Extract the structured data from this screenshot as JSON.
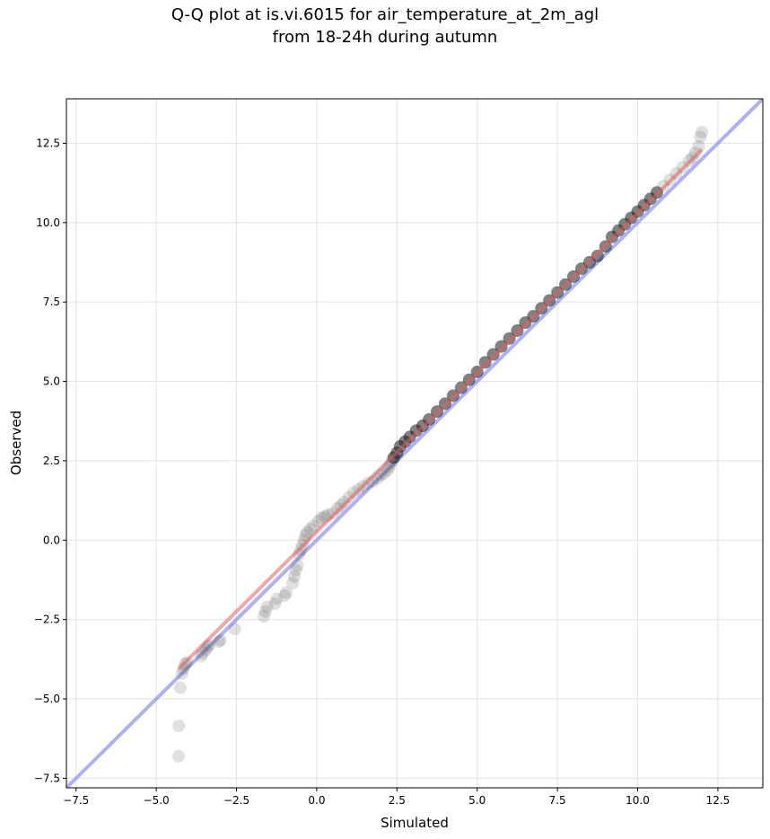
{
  "chart_data": {
    "type": "scatter",
    "title": "Q-Q plot at is.vi.6015 for air_temperature_at_2m_agl",
    "subtitle": "from 18-24h during autumn",
    "xlabel": "Simulated",
    "ylabel": "Observed",
    "xlim": [
      -7.8,
      13.9
    ],
    "ylim": [
      -7.8,
      13.9
    ],
    "xticks": [
      -7.5,
      -5.0,
      -2.5,
      0.0,
      2.5,
      5.0,
      7.5,
      10.0,
      12.5
    ],
    "yticks": [
      -7.5,
      -5.0,
      -2.5,
      0.0,
      2.5,
      5.0,
      7.5,
      10.0,
      12.5
    ],
    "xtick_labels": [
      "−7.5",
      "−5.0",
      "−2.5",
      "0.0",
      "2.5",
      "5.0",
      "7.5",
      "10.0",
      "12.5"
    ],
    "ytick_labels": [
      "−7.5",
      "−5.0",
      "−2.5",
      "0.0",
      "2.5",
      "5.0",
      "7.5",
      "10.0",
      "12.5"
    ],
    "grid": true,
    "colors": {
      "points": "#555555",
      "fit_line": "#e06060",
      "identity_line": "#7b7bef",
      "core_band": "#1a1a1a"
    },
    "fit_line": {
      "x": [
        -4.3,
        12.0
      ],
      "y": [
        -4.05,
        12.3
      ]
    },
    "identity_line": {
      "x": [
        -7.8,
        13.9
      ],
      "y": [
        -7.8,
        13.9
      ]
    },
    "points": {
      "x": [
        -4.3,
        -4.3,
        -4.25,
        -4.2,
        -4.15,
        -4.1,
        -4.05,
        -3.6,
        -3.55,
        -3.45,
        -3.4,
        -3.35,
        -3.05,
        -3.0,
        -2.55,
        -1.65,
        -1.6,
        -1.55,
        -1.3,
        -1.25,
        -1.0,
        -0.95,
        -0.75,
        -0.7,
        -0.65,
        -0.6,
        -0.55,
        -0.5,
        -0.45,
        -0.4,
        -0.35,
        -0.3,
        -0.2,
        -0.1,
        0.05,
        0.15,
        0.25,
        0.35,
        0.5,
        0.65,
        0.75,
        0.85,
        1.0,
        1.15,
        1.3,
        1.45,
        1.6,
        1.75,
        1.9,
        2.0,
        2.1,
        2.2,
        2.25,
        2.3,
        2.35,
        2.4,
        2.5,
        2.6,
        2.75,
        2.9,
        3.1,
        3.3,
        3.5,
        3.75,
        4.0,
        4.25,
        4.5,
        4.75,
        5.0,
        5.25,
        5.5,
        5.75,
        6.0,
        6.25,
        6.5,
        6.75,
        7.0,
        7.25,
        7.5,
        7.75,
        8.0,
        8.25,
        8.5,
        8.75,
        9.0,
        9.2,
        9.4,
        9.6,
        9.8,
        10.0,
        10.2,
        10.4,
        10.6,
        10.8,
        11.0,
        11.2,
        11.4,
        11.6,
        11.7,
        11.8,
        11.9,
        11.95,
        12.0
      ],
      "y": [
        -6.8,
        -5.85,
        -4.65,
        -4.2,
        -4.05,
        -3.9,
        -3.85,
        -3.65,
        -3.55,
        -3.45,
        -3.35,
        -3.3,
        -3.2,
        -3.15,
        -2.8,
        -2.4,
        -2.25,
        -2.1,
        -2.0,
        -1.85,
        -1.75,
        -1.65,
        -1.35,
        -1.15,
        -0.95,
        -0.8,
        -0.45,
        -0.3,
        -0.15,
        0.0,
        0.15,
        0.25,
        0.35,
        0.45,
        0.6,
        0.7,
        0.75,
        0.8,
        0.85,
        1.0,
        1.1,
        1.2,
        1.35,
        1.5,
        1.6,
        1.7,
        1.8,
        1.85,
        1.95,
        2.05,
        2.1,
        2.2,
        2.3,
        2.4,
        2.5,
        2.6,
        2.75,
        2.95,
        3.1,
        3.25,
        3.45,
        3.6,
        3.8,
        4.05,
        4.3,
        4.55,
        4.8,
        5.05,
        5.3,
        5.6,
        5.85,
        6.1,
        6.35,
        6.6,
        6.85,
        7.05,
        7.3,
        7.55,
        7.8,
        8.05,
        8.3,
        8.55,
        8.75,
        8.95,
        9.25,
        9.55,
        9.75,
        9.95,
        10.15,
        10.35,
        10.55,
        10.75,
        10.95,
        11.15,
        11.35,
        11.55,
        11.75,
        11.95,
        12.05,
        12.2,
        12.4,
        12.7,
        12.85
      ]
    }
  }
}
